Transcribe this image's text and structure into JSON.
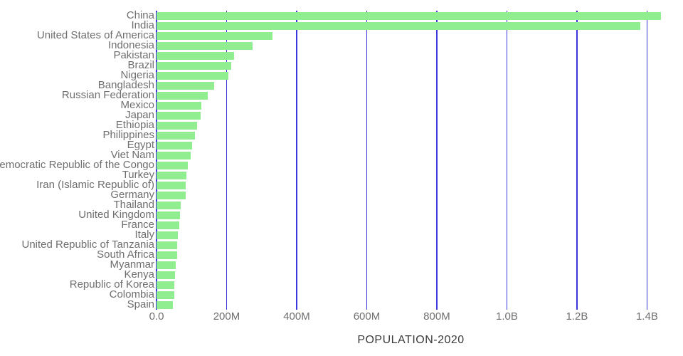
{
  "chart_data": {
    "type": "bar",
    "orientation": "horizontal",
    "title": "",
    "xlabel": "POPULATION-2020",
    "ylabel": "",
    "grid": true,
    "gridlines": "vertical",
    "xlim_millions": [
      0,
      1452
    ],
    "bar_color": "#90EE90",
    "gridline_color": "#3a38dd",
    "tick_label_color": "#6f6f6f",
    "category_label_color": "#6f6f6f",
    "title_color": "#3a3a3a",
    "categories": [
      "China",
      "India",
      "United States of America",
      "Indonesia",
      "Pakistan",
      "Brazil",
      "Nigeria",
      "Bangladesh",
      "Russian Federation",
      "Mexico",
      "Japan",
      "Ethiopia",
      "Philippines",
      "Egypt",
      "Viet Nam",
      "Democratic Republic of the Congo",
      "Turkey",
      "Iran (Islamic Republic of)",
      "Germany",
      "Thailand",
      "United Kingdom",
      "France",
      "Italy",
      "United Republic of Tanzania",
      "South Africa",
      "Myanmar",
      "Kenya",
      "Republic of Korea",
      "Colombia",
      "Spain"
    ],
    "values_millions": [
      1439,
      1380,
      331,
      273.5,
      220.9,
      212.6,
      206.1,
      164.7,
      145.9,
      128.9,
      126.5,
      115.0,
      109.6,
      102.3,
      97.3,
      89.6,
      84.3,
      84.0,
      83.8,
      69.8,
      67.9,
      65.3,
      60.5,
      59.7,
      59.3,
      54.4,
      53.8,
      51.3,
      50.9,
      46.8
    ],
    "x_ticks": [
      {
        "label": "0.0",
        "value_millions": 0
      },
      {
        "label": "200M",
        "value_millions": 200
      },
      {
        "label": "400M",
        "value_millions": 400
      },
      {
        "label": "600M",
        "value_millions": 600
      },
      {
        "label": "800M",
        "value_millions": 800
      },
      {
        "label": "1.0B",
        "value_millions": 1000
      },
      {
        "label": "1.2B",
        "value_millions": 1200
      },
      {
        "label": "1.4B",
        "value_millions": 1400
      }
    ]
  }
}
